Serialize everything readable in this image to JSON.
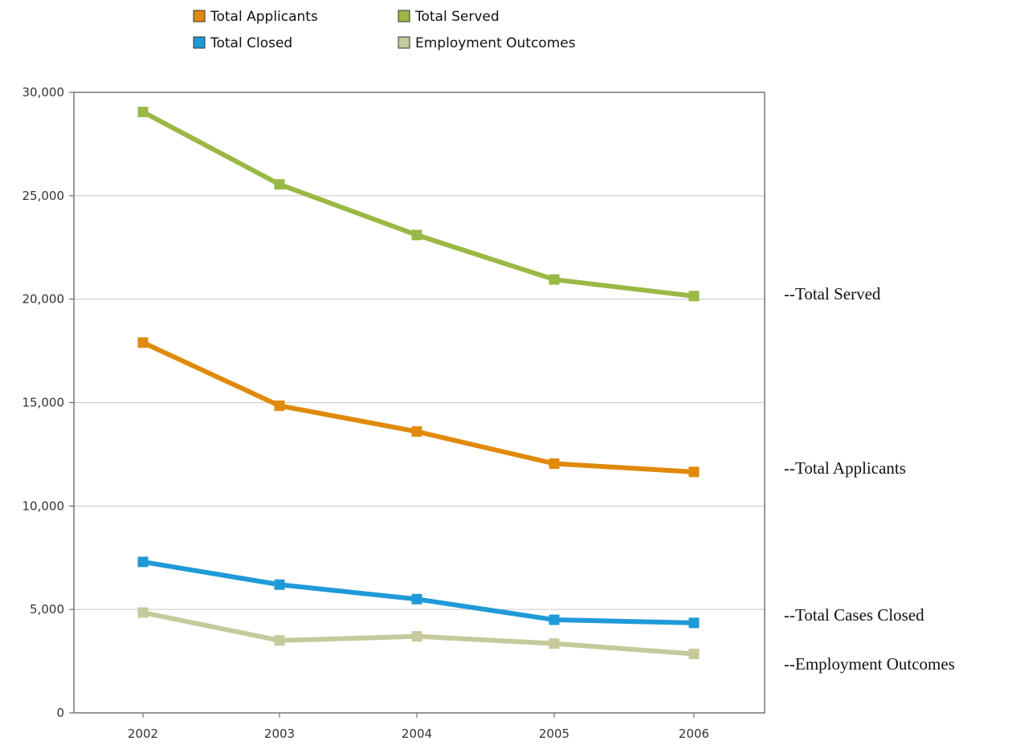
{
  "chart_data": {
    "type": "line",
    "title": "",
    "xlabel": "",
    "ylabel": "",
    "categories": [
      "2002",
      "2003",
      "2004",
      "2005",
      "2006"
    ],
    "ylim": [
      0,
      30000
    ],
    "yticks": [
      0,
      5000,
      10000,
      15000,
      20000,
      25000,
      30000
    ],
    "ytick_labels": [
      "0",
      "5,000",
      "10,000",
      "15,000",
      "20,000",
      "25,000",
      "30,000"
    ],
    "grid": "horizontal",
    "legend_position": "top",
    "series": [
      {
        "name": "Total Applicants",
        "color": "#e08a0b",
        "values": [
          17900,
          14850,
          13600,
          12050,
          11650
        ]
      },
      {
        "name": "Total Served",
        "color": "#9ab845",
        "values": [
          29050,
          25550,
          23100,
          20950,
          20150
        ]
      },
      {
        "name": "Total Closed",
        "color": "#1f9ad8",
        "values": [
          7300,
          6200,
          5500,
          4500,
          4350
        ]
      },
      {
        "name": "Employment Outcomes",
        "color": "#c6c99b",
        "values": [
          4850,
          3500,
          3700,
          3350,
          2850
        ]
      }
    ],
    "annotations": [
      {
        "text": "--Total Served"
      },
      {
        "text": "--Total Applicants"
      },
      {
        "text": "--Total Cases Closed"
      },
      {
        "text": "--Employment Outcomes"
      }
    ]
  }
}
